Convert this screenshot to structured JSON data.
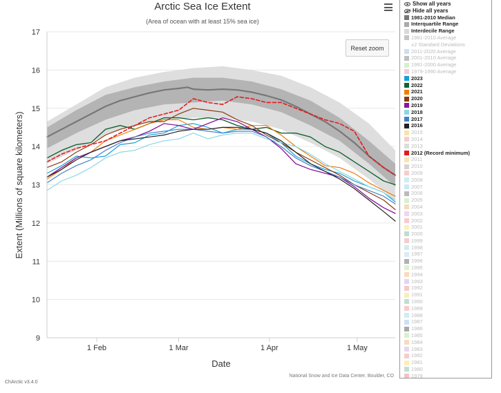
{
  "chart_data": {
    "type": "line",
    "title": "Arctic Sea Ice Extent",
    "subtitle": "(Area of ocean with at least 15% sea ice)",
    "xlabel": "Date",
    "ylabel": "Extent (Millions of square kilometers)",
    "xlim": [
      15,
      134
    ],
    "ylim": [
      9,
      17
    ],
    "y_ticks": [
      9,
      10,
      11,
      12,
      13,
      14,
      15,
      16,
      17
    ],
    "x_ticks": [
      {
        "day": 32,
        "label": "1 Feb"
      },
      {
        "day": 60,
        "label": "1 Mar"
      },
      {
        "day": 91,
        "label": "1 Apr"
      },
      {
        "day": 121,
        "label": "1 May"
      }
    ],
    "grid": "horizontal",
    "legend_position": "right",
    "x_unit": "day of year",
    "bands": [
      {
        "name": "Interdecile Range",
        "color": "#dedede",
        "x": [
          15,
          25,
          35,
          45,
          55,
          65,
          75,
          85,
          95,
          105,
          115,
          125,
          134
        ],
        "lower": [
          13.55,
          13.9,
          14.3,
          14.55,
          14.7,
          14.75,
          14.75,
          14.65,
          14.45,
          14.1,
          13.7,
          13.15,
          12.6
        ],
        "upper": [
          14.65,
          15.1,
          15.55,
          15.8,
          15.95,
          16.05,
          16.1,
          16.0,
          15.85,
          15.55,
          15.15,
          14.6,
          13.9
        ]
      },
      {
        "name": "Interquartile Range",
        "color": "#b4b4b4",
        "x": [
          15,
          25,
          35,
          45,
          55,
          65,
          75,
          85,
          95,
          105,
          115,
          125,
          134
        ],
        "lower": [
          13.95,
          14.35,
          14.7,
          14.95,
          15.1,
          15.15,
          15.2,
          15.1,
          14.9,
          14.55,
          14.15,
          13.55,
          12.95
        ],
        "upper": [
          14.5,
          14.95,
          15.35,
          15.55,
          15.7,
          15.8,
          15.8,
          15.7,
          15.5,
          15.2,
          14.75,
          14.15,
          13.55
        ]
      }
    ],
    "series": [
      {
        "name": "1981-2010 Median",
        "color": "#777777",
        "dash": false,
        "width": 2.2,
        "x": [
          15,
          20,
          25,
          30,
          35,
          40,
          45,
          50,
          55,
          60,
          63,
          65,
          70,
          75,
          80,
          85,
          90,
          95,
          100,
          105,
          110,
          115,
          120,
          125,
          130,
          134
        ],
        "y": [
          14.25,
          14.45,
          14.65,
          14.85,
          15.05,
          15.2,
          15.3,
          15.4,
          15.48,
          15.52,
          15.55,
          15.5,
          15.48,
          15.5,
          15.48,
          15.42,
          15.33,
          15.22,
          15.05,
          14.85,
          14.65,
          14.4,
          14.1,
          13.75,
          13.45,
          13.25
        ]
      },
      {
        "name": "2023",
        "color": "#1a9fd8",
        "dash": false,
        "width": 1.2,
        "x": [
          15,
          20,
          25,
          30,
          35,
          40,
          45,
          50,
          55,
          60,
          65,
          70,
          75,
          80,
          85,
          90,
          95,
          100,
          105,
          110,
          115,
          120,
          125,
          130,
          134
        ],
        "y": [
          13.3,
          13.5,
          13.75,
          13.7,
          13.75,
          14.05,
          14.1,
          14.3,
          14.35,
          14.55,
          14.6,
          14.5,
          14.35,
          14.45,
          14.45,
          14.35,
          14.1,
          13.75,
          13.55,
          13.4,
          13.3,
          13.1,
          12.95,
          12.8,
          12.55
        ]
      },
      {
        "name": "2022",
        "color": "#136235",
        "dash": false,
        "width": 1.4,
        "x": [
          15,
          20,
          25,
          30,
          35,
          40,
          45,
          50,
          55,
          60,
          65,
          70,
          75,
          80,
          85,
          90,
          95,
          100,
          105,
          110,
          115,
          120,
          125,
          130,
          134
        ],
        "y": [
          13.7,
          13.9,
          14.05,
          14.1,
          14.45,
          14.55,
          14.45,
          14.6,
          14.75,
          14.75,
          14.7,
          14.75,
          14.7,
          14.55,
          14.45,
          14.5,
          14.35,
          14.35,
          14.25,
          14.0,
          13.85,
          13.6,
          13.35,
          13.1,
          13.0
        ]
      },
      {
        "name": "2021",
        "color": "#ef7d07",
        "dash": false,
        "width": 1.2,
        "x": [
          15,
          20,
          25,
          30,
          35,
          40,
          45,
          50,
          55,
          60,
          65,
          70,
          75,
          80,
          85,
          90,
          95,
          100,
          105,
          110,
          115,
          120,
          125,
          130,
          134
        ],
        "y": [
          13.15,
          13.4,
          13.7,
          13.85,
          14.15,
          14.3,
          14.45,
          14.6,
          14.7,
          14.7,
          14.5,
          14.45,
          14.5,
          14.45,
          14.55,
          14.55,
          14.3,
          14.0,
          13.75,
          13.5,
          13.45,
          13.3,
          13.05,
          12.85,
          12.7
        ]
      },
      {
        "name": "2020",
        "color": "#8b3a0f",
        "dash": false,
        "width": 1.2,
        "x": [
          15,
          20,
          25,
          30,
          35,
          40,
          45,
          50,
          55,
          60,
          65,
          70,
          75,
          80,
          85,
          90,
          95,
          100,
          105,
          110,
          115,
          120,
          125,
          130,
          134
        ],
        "y": [
          13.45,
          13.6,
          13.85,
          14.05,
          14.3,
          14.45,
          14.55,
          14.65,
          14.65,
          14.85,
          15.0,
          14.95,
          14.9,
          14.7,
          14.55,
          14.3,
          14.1,
          13.85,
          13.65,
          13.45,
          13.25,
          13.0,
          12.8,
          12.6,
          12.35
        ]
      },
      {
        "name": "2019",
        "color": "#8b139d",
        "dash": false,
        "width": 1.3,
        "x": [
          15,
          20,
          25,
          30,
          35,
          40,
          45,
          50,
          55,
          60,
          65,
          70,
          75,
          80,
          85,
          90,
          95,
          100,
          105,
          110,
          115,
          120,
          125,
          130,
          134
        ],
        "y": [
          13.2,
          13.45,
          13.7,
          13.85,
          14.0,
          14.15,
          14.25,
          14.4,
          14.6,
          14.55,
          14.45,
          14.6,
          14.75,
          14.65,
          14.45,
          14.25,
          13.95,
          13.55,
          13.4,
          13.3,
          13.2,
          12.95,
          12.65,
          12.4,
          12.25
        ]
      },
      {
        "name": "2018",
        "color": "#8ad7e3",
        "dash": false,
        "width": 1.2,
        "x": [
          15,
          20,
          25,
          30,
          35,
          40,
          45,
          50,
          55,
          60,
          65,
          70,
          75,
          80,
          85,
          90,
          95,
          100,
          105,
          110,
          115,
          120,
          125,
          130,
          134
        ],
        "y": [
          12.85,
          13.1,
          13.25,
          13.45,
          13.7,
          13.85,
          13.9,
          14.05,
          14.15,
          14.2,
          14.35,
          14.2,
          14.3,
          14.35,
          14.35,
          14.2,
          14.1,
          14.0,
          13.8,
          13.55,
          13.35,
          13.15,
          12.95,
          12.8,
          12.6
        ]
      },
      {
        "name": "2017",
        "color": "#4480c8",
        "dash": false,
        "width": 1.2,
        "x": [
          15,
          20,
          25,
          30,
          35,
          40,
          45,
          50,
          55,
          60,
          65,
          70,
          75,
          80,
          85,
          90,
          95,
          100,
          105,
          110,
          115,
          120,
          125,
          130,
          134
        ],
        "y": [
          13.05,
          13.3,
          13.5,
          13.65,
          13.9,
          14.1,
          14.25,
          14.35,
          14.4,
          14.45,
          14.45,
          14.4,
          14.35,
          14.4,
          14.4,
          14.25,
          14.0,
          13.7,
          13.5,
          13.35,
          13.2,
          13.0,
          12.85,
          12.7,
          12.5
        ]
      },
      {
        "name": "2016",
        "color": "#222222",
        "dash": false,
        "width": 1.2,
        "x": [
          15,
          20,
          25,
          30,
          35,
          40,
          45,
          50,
          55,
          60,
          65,
          70,
          75,
          80,
          85,
          90,
          95,
          100,
          105,
          110,
          115,
          120,
          125,
          130,
          134
        ],
        "y": [
          13.2,
          13.4,
          13.65,
          13.85,
          14.0,
          14.15,
          14.2,
          14.25,
          14.3,
          14.4,
          14.45,
          14.45,
          14.5,
          14.5,
          14.45,
          14.35,
          14.15,
          13.85,
          13.55,
          13.35,
          13.15,
          12.9,
          12.6,
          12.3,
          12.05
        ]
      },
      {
        "name": "2012 (Record minimum)",
        "color": "#e41a1c",
        "dash": true,
        "width": 1.6,
        "x": [
          15,
          20,
          25,
          30,
          35,
          40,
          45,
          50,
          55,
          60,
          65,
          70,
          75,
          80,
          85,
          90,
          95,
          100,
          105,
          110,
          115,
          120,
          125,
          130,
          134
        ],
        "y": [
          13.6,
          13.8,
          13.95,
          14.05,
          14.15,
          14.35,
          14.55,
          14.75,
          14.85,
          14.95,
          15.25,
          15.15,
          15.1,
          15.3,
          15.25,
          15.15,
          15.15,
          15.0,
          14.85,
          14.7,
          14.6,
          14.4,
          13.75,
          13.45,
          13.25
        ]
      }
    ],
    "source": "National Snow and Ice Data Center, Boulder, CO"
  },
  "ui": {
    "reset_zoom_label": "Reset zoom",
    "version": "ChArctic v3.4.0"
  },
  "legend": {
    "show_all": "Show all years",
    "hide_all": "Hide all years",
    "items": [
      {
        "label": "1981-2010 Median",
        "color": "#777777",
        "on": true
      },
      {
        "label": "Interquartile Range",
        "color": "#aaaaaa",
        "on": true
      },
      {
        "label": "Interdecile Range",
        "color": "#d8d8d8",
        "on": true
      },
      {
        "label": "1981-2010 Average",
        "color": "#bfbfbf",
        "on": false
      },
      {
        "label": "±2 Standard Deviations",
        "color": "#ffffff",
        "on": false
      },
      {
        "label": "2011-2020 Average",
        "color": "#c7dcf0",
        "on": false
      },
      {
        "label": "2001-2010 Average",
        "color": "#b8b8b8",
        "on": false
      },
      {
        "label": "1991-2000 Average",
        "color": "#d2f0c8",
        "on": false
      },
      {
        "label": "1979-1990 Average",
        "color": "#f2c8d8",
        "on": false
      },
      {
        "label": "2023",
        "color": "#1a9fd8",
        "on": true
      },
      {
        "label": "2022",
        "color": "#136235",
        "on": true
      },
      {
        "label": "2021",
        "color": "#ef7d07",
        "on": true
      },
      {
        "label": "2020",
        "color": "#8b3a0f",
        "on": true
      },
      {
        "label": "2019",
        "color": "#8b139d",
        "on": true
      },
      {
        "label": "2018",
        "color": "#8ad7e3",
        "on": true
      },
      {
        "label": "2017",
        "color": "#4480c8",
        "on": true
      },
      {
        "label": "2016",
        "color": "#222222",
        "on": true
      },
      {
        "label": "2015",
        "color": "#f3e3a0",
        "on": false
      },
      {
        "label": "2014",
        "color": "#f6c6c6",
        "on": false
      },
      {
        "label": "2013",
        "color": "#d8d8d8",
        "on": false
      },
      {
        "label": "2012 (Record minimum)",
        "color": "#e41a1c",
        "on": true
      },
      {
        "label": "2011",
        "color": "#f7e2a8",
        "on": false
      },
      {
        "label": "2010",
        "color": "#cfcfcf",
        "on": false
      },
      {
        "label": "2009",
        "color": "#f6c8c8",
        "on": false
      },
      {
        "label": "2008",
        "color": "#c8ecf2",
        "on": false
      },
      {
        "label": "2007",
        "color": "#c8e4f6",
        "on": false
      },
      {
        "label": "2006",
        "color": "#b4b4b4",
        "on": false
      },
      {
        "label": "2005",
        "color": "#d2f0c8",
        "on": false
      },
      {
        "label": "2004",
        "color": "#f6d6b8",
        "on": false
      },
      {
        "label": "2003",
        "color": "#ead2f0",
        "on": false
      },
      {
        "label": "2002",
        "color": "#f6c6c6",
        "on": false
      },
      {
        "label": "2001",
        "color": "#f8f0b8",
        "on": false
      },
      {
        "label": "2000",
        "color": "#b8d8d0",
        "on": false
      },
      {
        "label": "1999",
        "color": "#f6c6c6",
        "on": false
      },
      {
        "label": "1998",
        "color": "#c8ecf2",
        "on": false
      },
      {
        "label": "1997",
        "color": "#d6e8f6",
        "on": false
      },
      {
        "label": "1996",
        "color": "#a8a8a8",
        "on": false
      },
      {
        "label": "1995",
        "color": "#d6f2c8",
        "on": false
      },
      {
        "label": "1994",
        "color": "#f6d8b8",
        "on": false
      },
      {
        "label": "1993",
        "color": "#e2cef2",
        "on": false
      },
      {
        "label": "1992",
        "color": "#f6c2c2",
        "on": false
      },
      {
        "label": "1991",
        "color": "#f8eeb0",
        "on": false
      },
      {
        "label": "1990",
        "color": "#b8dcd0",
        "on": false
      },
      {
        "label": "1989",
        "color": "#f6c6c6",
        "on": false
      },
      {
        "label": "1988",
        "color": "#c8ecf2",
        "on": false
      },
      {
        "label": "1987",
        "color": "#c8dcf6",
        "on": false
      },
      {
        "label": "1986",
        "color": "#a0a0a0",
        "on": false
      },
      {
        "label": "1985",
        "color": "#d2f0c8",
        "on": false
      },
      {
        "label": "1984",
        "color": "#f6d6b8",
        "on": false
      },
      {
        "label": "1983",
        "color": "#e6d0f2",
        "on": false
      },
      {
        "label": "1982",
        "color": "#f6c6c6",
        "on": false
      },
      {
        "label": "1981",
        "color": "#f8eeb0",
        "on": false
      },
      {
        "label": "1980",
        "color": "#b8dcd0",
        "on": false
      },
      {
        "label": "1979",
        "color": "#f6b8c0",
        "on": false
      }
    ]
  }
}
